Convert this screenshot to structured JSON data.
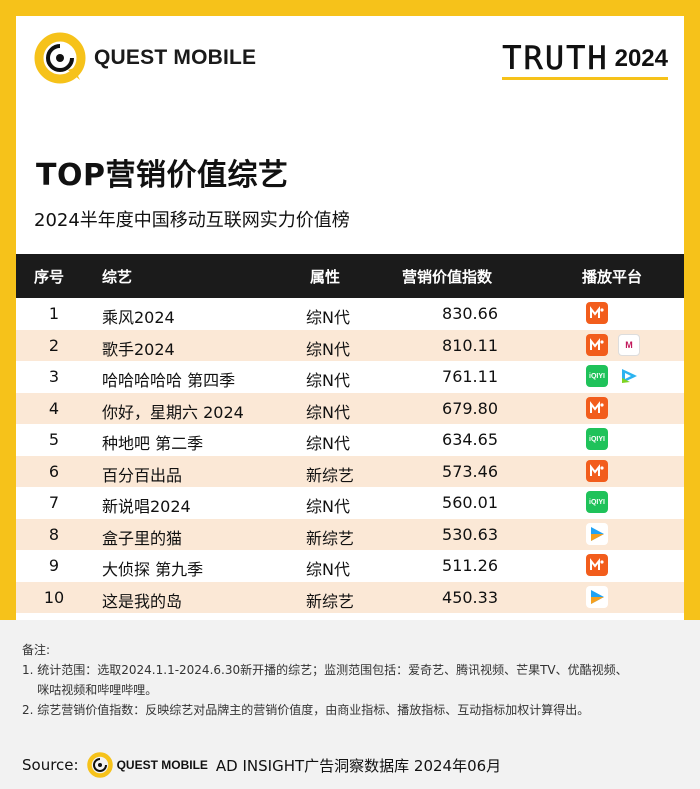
{
  "brand": {
    "logo_text": "QUEST MOBILE"
  },
  "badge": {
    "word": "TRUTH",
    "year": "2024"
  },
  "title": "TOP营销价值综艺",
  "subtitle": "2024半年度中国移动互联网实力价值榜",
  "table": {
    "headers": [
      "序号",
      "综艺",
      "属性",
      "营销价值指数",
      "播放平台"
    ],
    "rows": [
      {
        "rank": "1",
        "name": "乘风2024",
        "attr": "综N代",
        "value": "830.66",
        "platforms": [
          "mango-icon"
        ]
      },
      {
        "rank": "2",
        "name": "歌手2024",
        "attr": "综N代",
        "value": "810.11",
        "platforms": [
          "mango-icon",
          "migu-icon"
        ]
      },
      {
        "rank": "3",
        "name": "哈哈哈哈哈 第四季",
        "attr": "综N代",
        "value": "761.11",
        "platforms": [
          "iqiyi-icon",
          "tencent-video-icon"
        ]
      },
      {
        "rank": "4",
        "name": "你好，星期六 2024",
        "attr": "综N代",
        "value": "679.80",
        "platforms": [
          "mango-icon"
        ]
      },
      {
        "rank": "5",
        "name": "种地吧 第二季",
        "attr": "综N代",
        "value": "634.65",
        "platforms": [
          "iqiyi-icon"
        ]
      },
      {
        "rank": "6",
        "name": "百分百出品",
        "attr": "新综艺",
        "value": "573.46",
        "platforms": [
          "mango-icon"
        ]
      },
      {
        "rank": "7",
        "name": "新说唱2024",
        "attr": "综N代",
        "value": "560.01",
        "platforms": [
          "iqiyi-icon"
        ]
      },
      {
        "rank": "8",
        "name": "盒子里的猫",
        "attr": "新综艺",
        "value": "530.63",
        "platforms": [
          "youku-icon"
        ]
      },
      {
        "rank": "9",
        "name": "大侦探 第九季",
        "attr": "综N代",
        "value": "511.26",
        "platforms": [
          "mango-icon"
        ]
      },
      {
        "rank": "10",
        "name": "这是我的岛",
        "attr": "新综艺",
        "value": "450.33",
        "platforms": [
          "youku-icon"
        ]
      }
    ]
  },
  "platform_icon_text": {
    "iqiyi-icon": "iQIYI",
    "migu-icon": "M"
  },
  "notes": {
    "heading": "备注:",
    "items": [
      "1. 统计范围：选取2024.1.1-2024.6.30新开播的综艺；监测范围包括：爱奇艺、腾讯视频、芒果TV、优酷视频、",
      "    咪咕视频和哔哩哔哩。",
      "2. 综艺营销价值指数：反映综艺对品牌主的营销价值度，由商业指标、播放指标、互动指标加权计算得出。"
    ]
  },
  "source": {
    "label": "Source:",
    "logo_text": "QUEST MOBILE",
    "text": "AD INSIGHT广告洞察数据库 2024年06月"
  },
  "colors": {
    "background": "#f6c21a",
    "header_row": "#1b1b1b",
    "alt_row": "#fbe8d6",
    "mango": "#f25d1c",
    "iqiyi": "#1fc25a"
  },
  "chart_data": {
    "type": "table",
    "title": "TOP营销价值综艺",
    "subtitle": "2024半年度中国移动互联网实力价值榜",
    "columns": [
      "序号",
      "综艺",
      "属性",
      "营销价值指数",
      "播放平台"
    ],
    "categories": [
      "乘风2024",
      "歌手2024",
      "哈哈哈哈哈 第四季",
      "你好，星期六 2024",
      "种地吧 第二季",
      "百分百出品",
      "新说唱2024",
      "盒子里的猫",
      "大侦探 第九季",
      "这是我的岛"
    ],
    "values": [
      830.66,
      810.11,
      761.11,
      679.8,
      634.65,
      573.46,
      560.01,
      530.63,
      511.26,
      450.33
    ]
  }
}
